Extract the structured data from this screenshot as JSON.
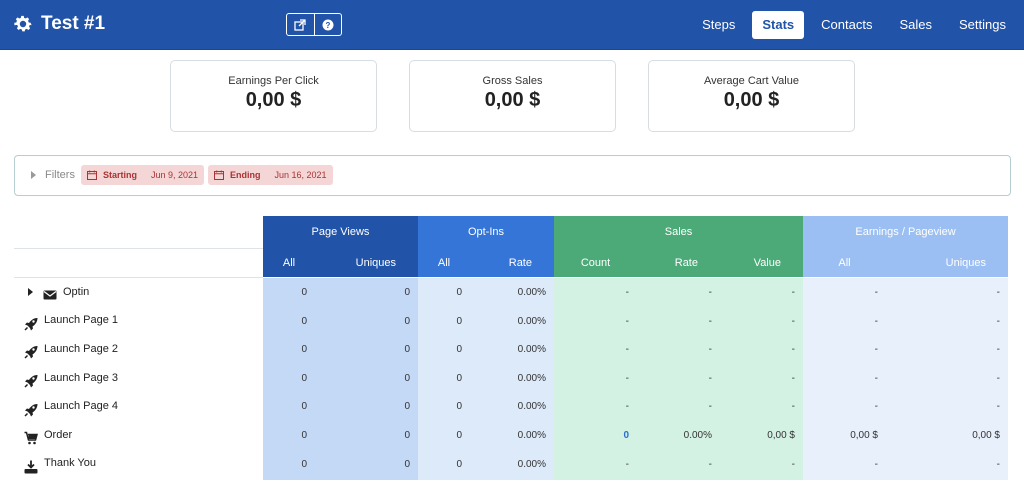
{
  "app": {
    "title": "Test #1",
    "icons": {
      "settings": "gear-icon",
      "external": "external-link-icon",
      "help": "question-circle-icon"
    }
  },
  "nav": [
    {
      "label": "Steps",
      "active": false
    },
    {
      "label": "Stats",
      "active": true
    },
    {
      "label": "Contacts",
      "active": false
    },
    {
      "label": "Sales",
      "active": false
    },
    {
      "label": "Settings",
      "active": false
    }
  ],
  "summary": [
    {
      "label": "Earnings Per Click",
      "value": "0,00 $"
    },
    {
      "label": "Gross Sales",
      "value": "0,00 $"
    },
    {
      "label": "Average Cart Value",
      "value": "0,00 $"
    }
  ],
  "filters": {
    "label": "Filters",
    "starting_label": "Starting",
    "starting_value": "Jun 9, 2021",
    "ending_label": "Ending",
    "ending_value": "Jun 16, 2021"
  },
  "table": {
    "groups": [
      {
        "name": "Page Views",
        "color": "#2153a8",
        "sub": [
          "All",
          "Uniques"
        ]
      },
      {
        "name": "Opt-Ins",
        "color": "#3575d8",
        "sub": [
          "All",
          "Rate"
        ]
      },
      {
        "name": "Sales",
        "color": "#4caa78",
        "sub": [
          "Count",
          "Rate",
          "Value"
        ]
      },
      {
        "name": "Earnings / Pageview",
        "color": "#9bbff2",
        "sub": [
          "All",
          "Uniques"
        ]
      }
    ],
    "rows": [
      {
        "label": "Optin",
        "icon": "envelope-icon",
        "expandable": true,
        "cells": [
          "0",
          "0",
          "0",
          "0.00%",
          "-",
          "-",
          "-",
          "-",
          "-"
        ]
      },
      {
        "label": "Launch Page 1",
        "icon": "rocket-icon",
        "expandable": false,
        "cells": [
          "0",
          "0",
          "0",
          "0.00%",
          "-",
          "-",
          "-",
          "-",
          "-"
        ]
      },
      {
        "label": "Launch Page 2",
        "icon": "rocket-icon",
        "expandable": false,
        "cells": [
          "0",
          "0",
          "0",
          "0.00%",
          "-",
          "-",
          "-",
          "-",
          "-"
        ]
      },
      {
        "label": "Launch Page 3",
        "icon": "rocket-icon",
        "expandable": false,
        "cells": [
          "0",
          "0",
          "0",
          "0.00%",
          "-",
          "-",
          "-",
          "-",
          "-"
        ]
      },
      {
        "label": "Launch Page 4",
        "icon": "rocket-icon",
        "expandable": false,
        "cells": [
          "0",
          "0",
          "0",
          "0.00%",
          "-",
          "-",
          "-",
          "-",
          "-"
        ]
      },
      {
        "label": "Order",
        "icon": "cart-icon",
        "expandable": false,
        "cells": [
          "0",
          "0",
          "0",
          "0.00%",
          "0",
          "0.00%",
          "0,00 $",
          "0,00 $",
          "0,00 $"
        ]
      },
      {
        "label": "Thank You",
        "icon": "download-icon",
        "expandable": false,
        "cells": [
          "0",
          "0",
          "0",
          "0.00%",
          "-",
          "-",
          "-",
          "-",
          "-"
        ]
      }
    ]
  }
}
